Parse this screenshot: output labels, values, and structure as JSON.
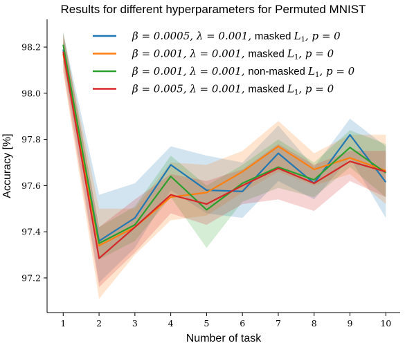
{
  "chart_data": {
    "type": "line",
    "title": "Results for different hyperparameters for Permuted MNIST",
    "xlabel": "Number of task",
    "ylabel": "Accuracy [%]",
    "x": [
      1,
      2,
      3,
      4,
      5,
      6,
      7,
      8,
      9,
      10
    ],
    "xlim": [
      0.55,
      10.4
    ],
    "ylim": [
      97.05,
      98.32
    ],
    "xticks": [
      "1",
      "2",
      "3",
      "4",
      "5",
      "6",
      "7",
      "8",
      "9",
      "10"
    ],
    "yticks": [
      "97.2",
      "97.4",
      "97.6",
      "97.8",
      "98.0",
      "98.2"
    ],
    "ytick_values": [
      97.2,
      97.4,
      97.6,
      97.8,
      98.0,
      98.2
    ],
    "grid": false,
    "legend_position": "top-right",
    "series": [
      {
        "name": "β = 0.0005, λ = 0.001, masked L1, p = 0",
        "color": "#1f77b4",
        "values": [
          98.19,
          97.36,
          97.46,
          97.69,
          97.58,
          97.575,
          97.74,
          97.61,
          97.82,
          97.615
        ],
        "upper": [
          98.26,
          97.56,
          97.61,
          97.77,
          97.73,
          97.7,
          97.86,
          97.68,
          97.89,
          97.77
        ],
        "lower": [
          98.13,
          97.18,
          97.33,
          97.58,
          97.48,
          97.46,
          97.62,
          97.54,
          97.72,
          97.46
        ]
      },
      {
        "name": "β = 0.001, λ = 0.001, masked L1, p = 0",
        "color": "#ff7f0e",
        "values": [
          98.17,
          97.34,
          97.42,
          97.55,
          97.57,
          97.66,
          97.77,
          97.67,
          97.72,
          97.665
        ],
        "upper": [
          98.25,
          97.5,
          97.5,
          97.7,
          97.69,
          97.75,
          97.88,
          97.74,
          97.82,
          97.82
        ],
        "lower": [
          98.09,
          97.11,
          97.3,
          97.45,
          97.47,
          97.57,
          97.66,
          97.6,
          97.65,
          97.52
        ]
      },
      {
        "name": "β = 0.001, λ = 0.001, non-masked L1, p = 0",
        "color": "#2ca02c",
        "values": [
          98.21,
          97.35,
          97.43,
          97.64,
          97.495,
          97.61,
          97.68,
          97.625,
          97.765,
          97.655
        ],
        "upper": [
          98.27,
          97.42,
          97.51,
          97.73,
          97.6,
          97.69,
          97.8,
          97.7,
          97.84,
          97.78
        ],
        "lower": [
          98.14,
          97.28,
          97.36,
          97.55,
          97.33,
          97.53,
          97.59,
          97.55,
          97.68,
          97.55
        ]
      },
      {
        "name": "β = 0.005, λ = 0.001, masked L1, p = 0",
        "color": "#d62728",
        "values": [
          98.18,
          97.285,
          97.42,
          97.56,
          97.52,
          97.6,
          97.675,
          97.61,
          97.705,
          97.66
        ],
        "upper": [
          98.26,
          97.42,
          97.54,
          97.65,
          97.62,
          97.67,
          97.78,
          97.69,
          97.75,
          97.75
        ],
        "lower": [
          98.1,
          97.16,
          97.31,
          97.48,
          97.43,
          97.52,
          97.54,
          97.49,
          97.62,
          97.55
        ]
      }
    ]
  },
  "legend": {
    "items": [
      {
        "math": "β = 0.0005, λ = 0.001,",
        "label": "masked",
        "l1": "L",
        "sub": "1",
        "tail": ", p = 0"
      },
      {
        "math": "β = 0.001, λ = 0.001,",
        "label": "masked",
        "l1": "L",
        "sub": "1",
        "tail": ", p = 0"
      },
      {
        "math": "β = 0.001, λ = 0.001,",
        "label": "non-masked",
        "l1": "L",
        "sub": "1",
        "tail": ", p = 0"
      },
      {
        "math": "β = 0.005, λ = 0.001,",
        "label": "masked",
        "l1": "L",
        "sub": "1",
        "tail": ", p = 0"
      }
    ]
  }
}
